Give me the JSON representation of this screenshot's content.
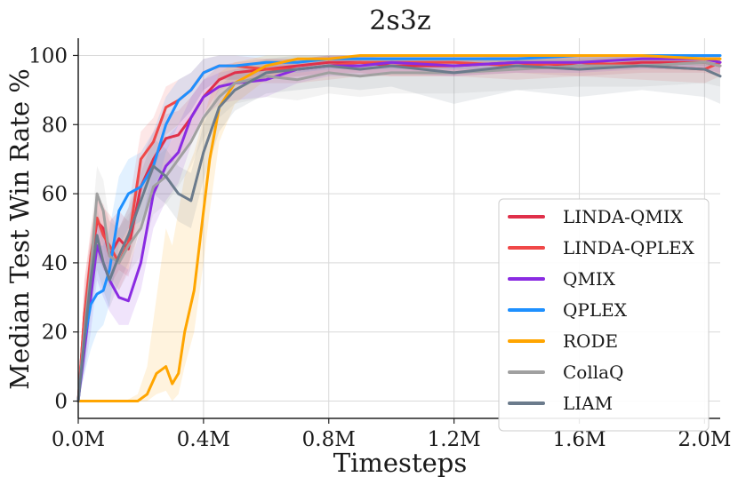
{
  "chart_data": {
    "type": "line",
    "title": "2s3z",
    "xlabel": "Timesteps",
    "ylabel": "Median Test Win Rate %",
    "xlim": [
      0,
      2050000
    ],
    "ylim": [
      -5,
      105
    ],
    "xticks": [
      {
        "value": 0,
        "label": "0.0M"
      },
      {
        "value": 400000,
        "label": "0.4M"
      },
      {
        "value": 800000,
        "label": "0.8M"
      },
      {
        "value": 1200000,
        "label": "1.2M"
      },
      {
        "value": 1600000,
        "label": "1.6M"
      },
      {
        "value": 2000000,
        "label": "2.0M"
      }
    ],
    "yticks": [
      {
        "value": 0,
        "label": "0"
      },
      {
        "value": 20,
        "label": "20"
      },
      {
        "value": 40,
        "label": "40"
      },
      {
        "value": 60,
        "label": "60"
      },
      {
        "value": 80,
        "label": "80"
      },
      {
        "value": 100,
        "label": "100"
      }
    ],
    "grid": true,
    "legend_position": "bottom-right",
    "series": [
      {
        "name": "LINDA-QMIX",
        "color": "#e0304a",
        "x": [
          0,
          20000,
          40000,
          60000,
          80000,
          100000,
          130000,
          160000,
          200000,
          240000,
          280000,
          320000,
          360000,
          400000,
          450000,
          500000,
          600000,
          700000,
          800000,
          900000,
          1000000,
          1200000,
          1400000,
          1600000,
          1800000,
          2000000,
          2050000
        ],
        "y": [
          0,
          25,
          40,
          52,
          50,
          42,
          47,
          44,
          62,
          70,
          76,
          77,
          82,
          88,
          93,
          95,
          96,
          97,
          98,
          98,
          97,
          97,
          98,
          97,
          98,
          98,
          97
        ],
        "band_lo": [
          0,
          15,
          30,
          40,
          40,
          33,
          38,
          36,
          52,
          62,
          68,
          70,
          76,
          83,
          90,
          92,
          93,
          94,
          95,
          95,
          94,
          94,
          95,
          94,
          95,
          95,
          94
        ],
        "band_hi": [
          0,
          35,
          48,
          58,
          57,
          52,
          55,
          52,
          70,
          78,
          83,
          84,
          88,
          93,
          97,
          98,
          99,
          99,
          100,
          100,
          99,
          99,
          100,
          99,
          100,
          100,
          99
        ]
      },
      {
        "name": "LINDA-QPLEX",
        "color": "#f04848",
        "x": [
          0,
          20000,
          40000,
          60000,
          80000,
          100000,
          130000,
          160000,
          200000,
          240000,
          280000,
          320000,
          360000,
          400000,
          450000,
          500000,
          600000,
          700000,
          800000,
          900000,
          1000000,
          1200000,
          1400000,
          1600000,
          1800000,
          2000000,
          2050000
        ],
        "y": [
          0,
          25,
          42,
          53,
          48,
          45,
          40,
          46,
          70,
          75,
          85,
          87,
          90,
          95,
          97,
          97,
          96,
          96,
          97,
          98,
          98,
          98,
          97,
          98,
          97,
          96,
          98
        ],
        "band_lo": [
          0,
          15,
          32,
          42,
          38,
          36,
          32,
          38,
          60,
          66,
          77,
          80,
          84,
          90,
          93,
          93,
          92,
          92,
          93,
          94,
          94,
          94,
          93,
          94,
          93,
          92,
          94
        ],
        "band_hi": [
          0,
          35,
          50,
          60,
          56,
          54,
          50,
          56,
          78,
          82,
          91,
          93,
          95,
          99,
          100,
          100,
          99,
          99,
          100,
          100,
          100,
          100,
          100,
          100,
          100,
          99,
          100
        ]
      },
      {
        "name": "QMIX",
        "color": "#8a2be2",
        "x": [
          0,
          20000,
          40000,
          60000,
          80000,
          100000,
          130000,
          160000,
          200000,
          240000,
          280000,
          320000,
          360000,
          400000,
          450000,
          500000,
          600000,
          700000,
          800000,
          900000,
          1000000,
          1200000,
          1400000,
          1600000,
          1800000,
          2000000,
          2050000
        ],
        "y": [
          0,
          15,
          30,
          45,
          40,
          35,
          30,
          29,
          40,
          60,
          68,
          72,
          82,
          88,
          91,
          92,
          93,
          96,
          97,
          97,
          98,
          97,
          98,
          98,
          99,
          99,
          98
        ],
        "band_lo": [
          0,
          8,
          20,
          35,
          30,
          26,
          22,
          22,
          32,
          50,
          58,
          63,
          74,
          82,
          86,
          87,
          88,
          92,
          94,
          94,
          95,
          94,
          95,
          95,
          96,
          96,
          95
        ],
        "band_hi": [
          0,
          25,
          40,
          53,
          50,
          45,
          40,
          38,
          50,
          68,
          76,
          80,
          88,
          93,
          95,
          96,
          97,
          99,
          100,
          100,
          100,
          100,
          100,
          100,
          100,
          100,
          100
        ]
      },
      {
        "name": "QPLEX",
        "color": "#1e90ff",
        "x": [
          0,
          20000,
          40000,
          60000,
          80000,
          100000,
          130000,
          160000,
          200000,
          240000,
          280000,
          320000,
          360000,
          400000,
          450000,
          500000,
          600000,
          700000,
          800000,
          900000,
          1000000,
          1200000,
          1400000,
          1600000,
          1800000,
          2000000,
          2050000
        ],
        "y": [
          0,
          18,
          28,
          31,
          32,
          38,
          55,
          60,
          62,
          68,
          80,
          87,
          90,
          95,
          97,
          97,
          98,
          98,
          99,
          99,
          99,
          99,
          99,
          100,
          100,
          100,
          100
        ],
        "band_lo": [
          0,
          8,
          15,
          20,
          22,
          28,
          45,
          50,
          52,
          58,
          72,
          80,
          84,
          90,
          93,
          93,
          95,
          95,
          96,
          96,
          96,
          96,
          96,
          97,
          97,
          97,
          97
        ],
        "band_hi": [
          0,
          30,
          42,
          45,
          45,
          50,
          65,
          70,
          72,
          78,
          88,
          93,
          95,
          99,
          100,
          100,
          100,
          100,
          100,
          100,
          100,
          100,
          100,
          100,
          100,
          100,
          100
        ]
      },
      {
        "name": "RODE",
        "color": "#ffa500",
        "x": [
          0,
          50000,
          100000,
          150000,
          190000,
          220000,
          250000,
          280000,
          300000,
          320000,
          340000,
          370000,
          400000,
          420000,
          450000,
          500000,
          600000,
          700000,
          800000,
          900000,
          1000000,
          1200000,
          1400000,
          1600000,
          1800000,
          2000000,
          2050000
        ],
        "y": [
          0,
          0,
          0,
          0,
          0,
          2,
          8,
          10,
          5,
          8,
          20,
          32,
          55,
          70,
          85,
          92,
          97,
          99,
          99,
          100,
          100,
          100,
          100,
          100,
          100,
          99,
          99
        ],
        "band_lo": [
          0,
          0,
          0,
          0,
          0,
          0,
          2,
          3,
          0,
          2,
          10,
          20,
          40,
          55,
          75,
          86,
          93,
          96,
          97,
          98,
          98,
          98,
          98,
          98,
          98,
          97,
          97
        ],
        "band_hi": [
          0,
          0,
          0,
          0,
          2,
          10,
          30,
          50,
          45,
          55,
          65,
          72,
          82,
          88,
          95,
          98,
          100,
          100,
          100,
          100,
          100,
          100,
          100,
          100,
          100,
          100,
          100
        ]
      },
      {
        "name": "CollaQ",
        "color": "#a0a0a0",
        "x": [
          0,
          20000,
          40000,
          60000,
          80000,
          100000,
          130000,
          160000,
          200000,
          240000,
          280000,
          320000,
          360000,
          400000,
          450000,
          500000,
          600000,
          700000,
          800000,
          900000,
          1000000,
          1200000,
          1400000,
          1600000,
          1800000,
          2000000,
          2050000
        ],
        "y": [
          0,
          20,
          38,
          60,
          55,
          42,
          40,
          45,
          50,
          62,
          65,
          70,
          75,
          82,
          88,
          92,
          94,
          93,
          95,
          94,
          95,
          95,
          96,
          97,
          97,
          98,
          97
        ],
        "band_lo": [
          0,
          10,
          28,
          50,
          45,
          34,
          32,
          37,
          42,
          54,
          57,
          62,
          68,
          76,
          82,
          86,
          88,
          87,
          89,
          88,
          89,
          89,
          90,
          91,
          91,
          92,
          91
        ],
        "band_hi": [
          0,
          30,
          48,
          68,
          64,
          52,
          50,
          54,
          58,
          70,
          73,
          78,
          82,
          88,
          93,
          96,
          98,
          97,
          99,
          98,
          99,
          99,
          100,
          100,
          100,
          100,
          100
        ]
      },
      {
        "name": "LIAM",
        "color": "#6b7b8c",
        "x": [
          0,
          20000,
          40000,
          60000,
          80000,
          100000,
          130000,
          160000,
          200000,
          240000,
          280000,
          320000,
          360000,
          400000,
          450000,
          500000,
          600000,
          700000,
          800000,
          900000,
          1000000,
          1200000,
          1400000,
          1600000,
          1800000,
          2000000,
          2050000
        ],
        "y": [
          0,
          18,
          35,
          48,
          40,
          35,
          42,
          48,
          58,
          68,
          65,
          60,
          58,
          72,
          85,
          90,
          95,
          96,
          97,
          96,
          97,
          95,
          97,
          96,
          97,
          96,
          94
        ],
        "band_lo": [
          0,
          10,
          25,
          38,
          32,
          27,
          34,
          40,
          50,
          60,
          57,
          52,
          50,
          64,
          78,
          84,
          89,
          90,
          91,
          90,
          91,
          86,
          90,
          88,
          90,
          88,
          86
        ],
        "band_hi": [
          0,
          28,
          45,
          56,
          48,
          44,
          50,
          56,
          66,
          76,
          73,
          68,
          66,
          80,
          91,
          95,
          99,
          100,
          100,
          100,
          100,
          100,
          100,
          100,
          100,
          100,
          100
        ]
      }
    ]
  }
}
